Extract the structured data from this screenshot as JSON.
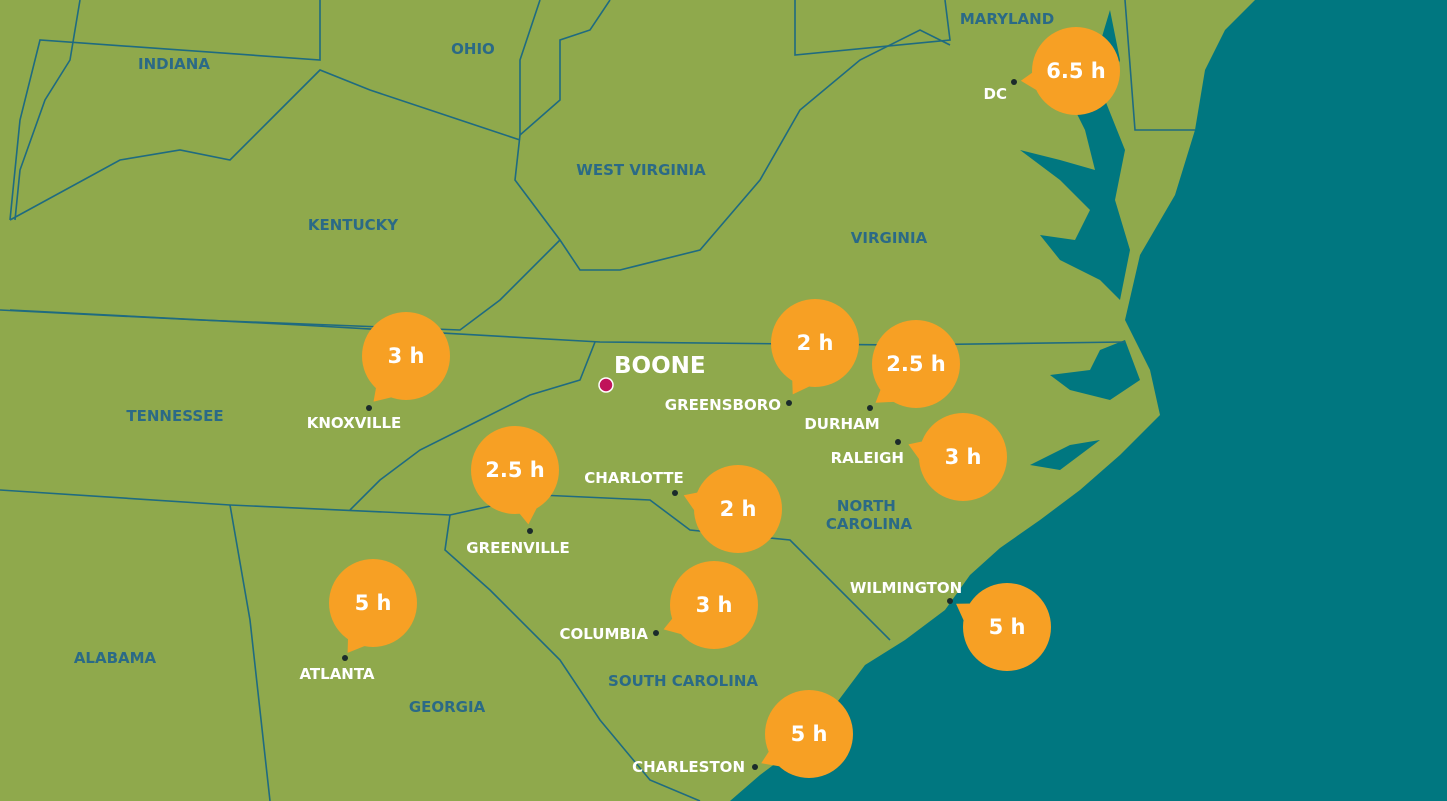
{
  "states": [
    "MARYLAND",
    "INDIANA",
    "OHIO",
    "WEST VIRGINIA",
    "KENTUCKY",
    "VIRGINIA",
    "TENNESSEE",
    [
      "NORTH",
      "CAROLINA"
    ],
    "SOUTH CAROLINA",
    "ALABAMA",
    "GEORGIA"
  ],
  "origin": "BOONE",
  "cities": [
    {
      "name": "DC",
      "time": "6.5 h"
    },
    {
      "name": "KNOXVILLE",
      "time": "3 h"
    },
    {
      "name": "GREENSBORO",
      "time": "2 h"
    },
    {
      "name": "DURHAM",
      "time": "2.5 h"
    },
    {
      "name": "RALEIGH",
      "time": "3 h"
    },
    {
      "name": "GREENVILLE",
      "time": "2.5 h"
    },
    {
      "name": "CHARLOTTE",
      "time": "2 h"
    },
    {
      "name": "COLUMBIA",
      "time": "3 h"
    },
    {
      "name": "ATLANTA",
      "time": "5 h"
    },
    {
      "name": "WILMINGTON",
      "time": "5 h"
    },
    {
      "name": "CHARLESTON",
      "time": "5 h"
    }
  ]
}
